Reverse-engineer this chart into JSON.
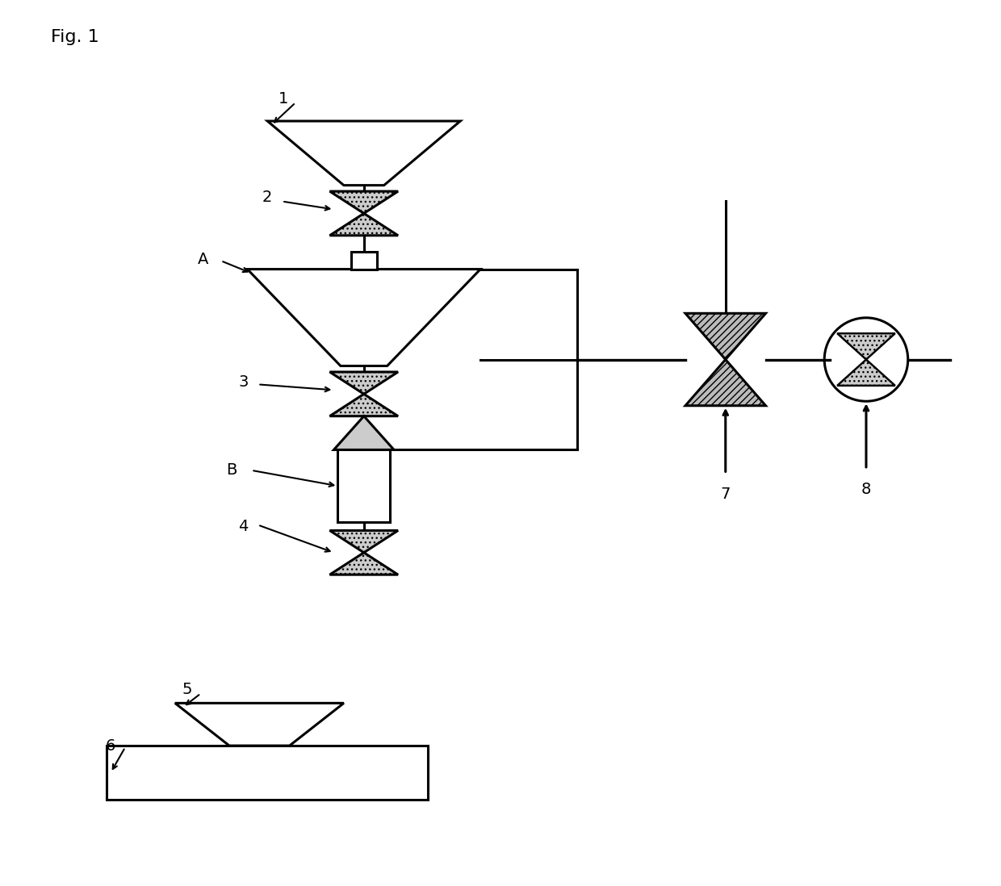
{
  "fig_label": "Fig. 1",
  "background_color": "#ffffff",
  "line_color": "#000000",
  "figsize": [
    12.4,
    10.98
  ],
  "lw": 2.2
}
